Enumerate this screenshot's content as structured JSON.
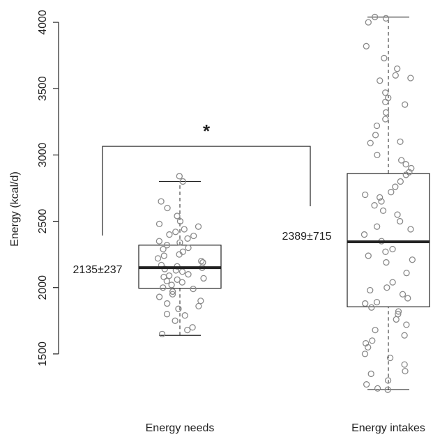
{
  "chart_data": {
    "type": "box",
    "y_label": "Energy (kcal/d)",
    "categories": [
      "Energy needs",
      "Energy intakes"
    ],
    "ylim": [
      1200,
      4100
    ],
    "yticks": [
      1500,
      2000,
      2500,
      3000,
      3500,
      4000
    ],
    "boxes": [
      {
        "low": 1640,
        "q1": 1995,
        "median": 2150,
        "q3": 2320,
        "high": 2800,
        "points": [
          2840,
          2800,
          2650,
          2600,
          2540,
          2500,
          2480,
          2460,
          2440,
          2420,
          2400,
          2390,
          2370,
          2350,
          2340,
          2320,
          2300,
          2290,
          2270,
          2250,
          2240,
          2220,
          2200,
          2190,
          2170,
          2160,
          2150,
          2140,
          2130,
          2120,
          2100,
          2090,
          2080,
          2070,
          2060,
          2050,
          2040,
          2020,
          2000,
          1990,
          1970,
          1950,
          1930,
          1900,
          1880,
          1860,
          1840,
          1800,
          1790,
          1750,
          1700,
          1680,
          1650
        ]
      },
      {
        "low": 1230,
        "q1": 1855,
        "median": 2345,
        "q3": 2860,
        "high": 4040,
        "points": [
          4040,
          4030,
          4000,
          3820,
          3730,
          3650,
          3600,
          3580,
          3560,
          3470,
          3430,
          3400,
          3380,
          3320,
          3270,
          3220,
          3150,
          3100,
          3090,
          3000,
          2960,
          2930,
          2900,
          2870,
          2850,
          2800,
          2760,
          2720,
          2700,
          2680,
          2650,
          2620,
          2580,
          2550,
          2500,
          2460,
          2440,
          2400,
          2350,
          2290,
          2270,
          2240,
          2210,
          2190,
          2110,
          2040,
          2000,
          1980,
          1950,
          1920,
          1890,
          1880,
          1850,
          1820,
          1800,
          1760,
          1720,
          1680,
          1640,
          1600,
          1580,
          1550,
          1500,
          1470,
          1420,
          1370,
          1350,
          1300,
          1270,
          1240,
          1230
        ]
      }
    ],
    "annotations": [
      "2135±237",
      "2389±715"
    ],
    "significance": "*"
  }
}
